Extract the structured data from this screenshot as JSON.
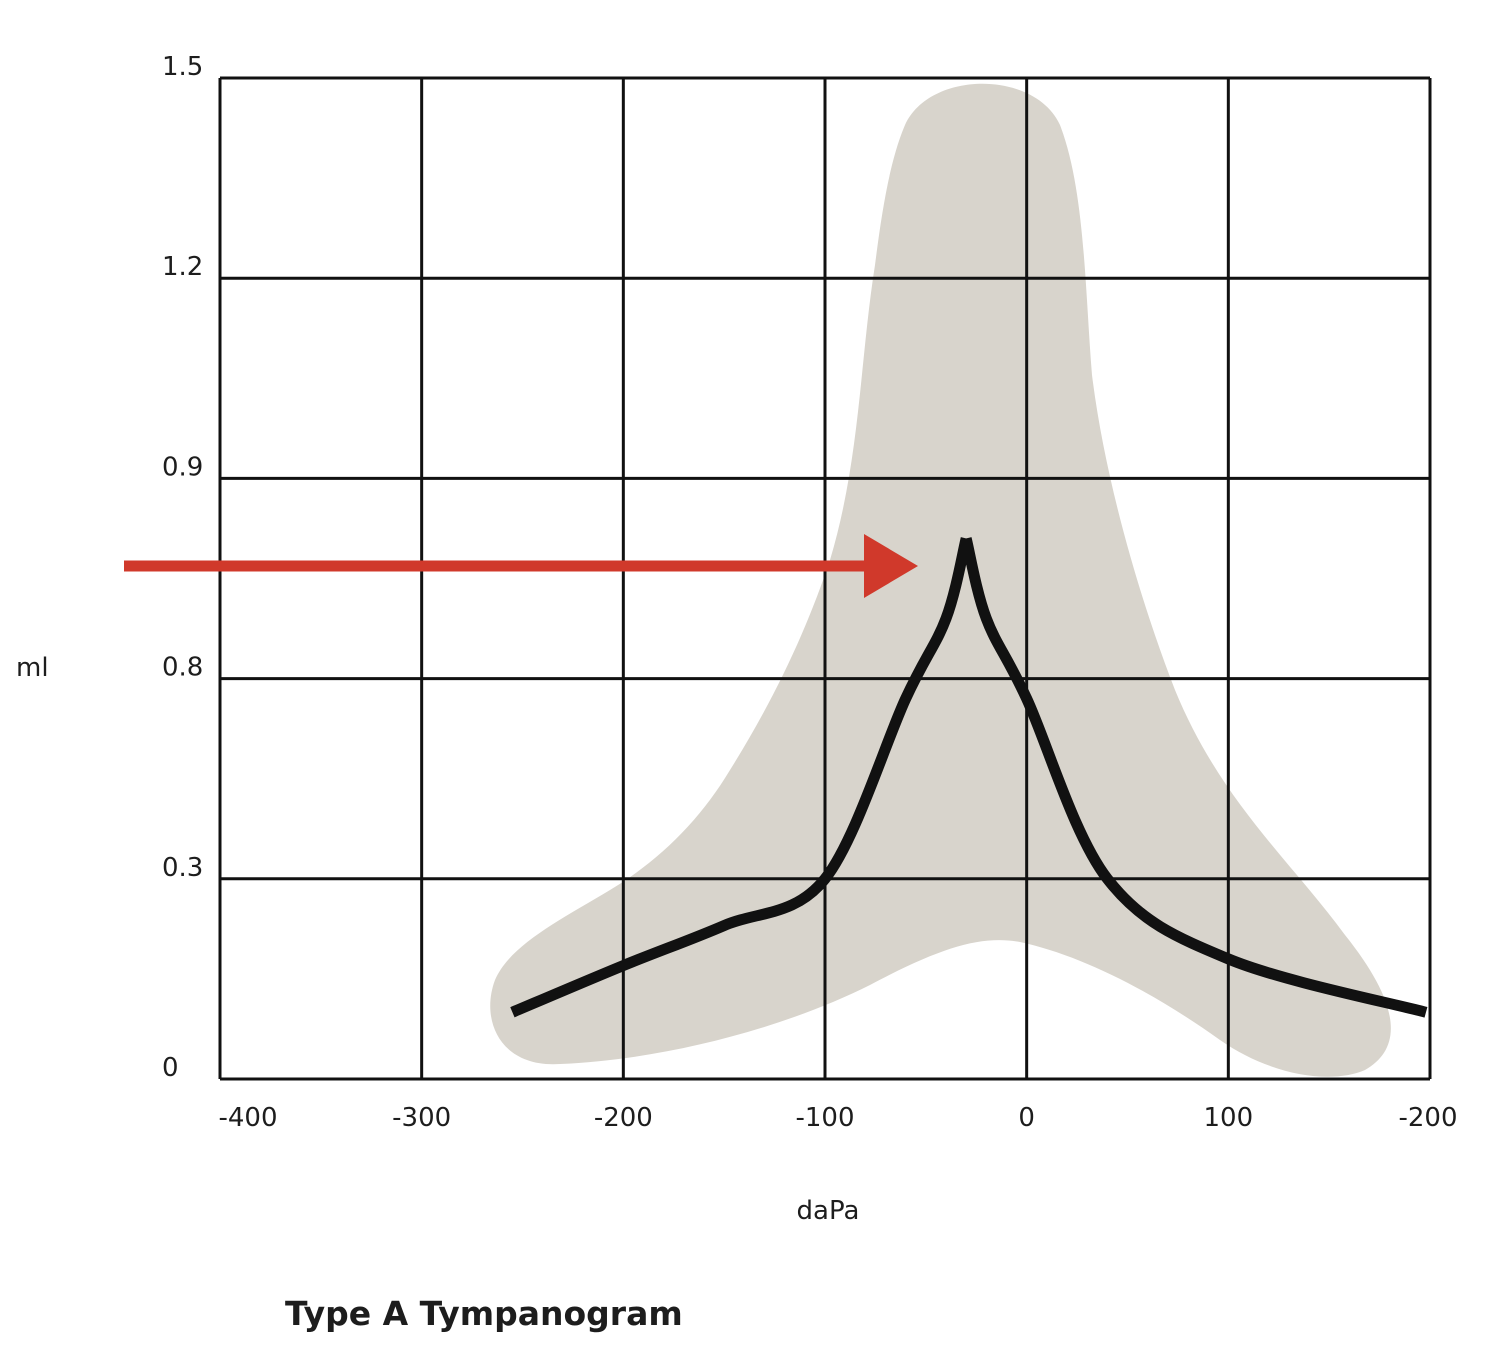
{
  "chart_data": {
    "type": "line",
    "title": "Type A Tympanogram",
    "xlabel": "daPa",
    "ylabel": "ml",
    "x_tick_labels": [
      "-400",
      "-300",
      "-200",
      "-100",
      "0",
      "100",
      "-200"
    ],
    "y_tick_labels": [
      "0",
      "0.3",
      "0.8",
      "0.9",
      "1.2",
      "1.5"
    ],
    "grid": true,
    "series": [
      {
        "color": "#111111",
        "points": [
          {
            "x": -255,
            "y": "0.1"
          },
          {
            "x": -200,
            "y": "0.17"
          },
          {
            "x": -150,
            "y": "0.23"
          },
          {
            "x": -100,
            "y": "0.3"
          },
          {
            "x": -60,
            "y": "0.75"
          },
          {
            "x": -40,
            "y": "0.83"
          },
          {
            "x": -30,
            "y": "0.87"
          },
          {
            "x": -20,
            "y": "0.83"
          },
          {
            "x": 0,
            "y": "0.75"
          },
          {
            "x": 40,
            "y": "0.3"
          },
          {
            "x": 100,
            "y": "0.18"
          },
          {
            "x": 198,
            "y": "0.1"
          }
        ]
      }
    ],
    "peak_arrow": {
      "color": "#d0392b",
      "points_to": {
        "x": -30,
        "y": "0.87"
      }
    },
    "normal_region": {
      "color": "#d8d4cc"
    }
  }
}
